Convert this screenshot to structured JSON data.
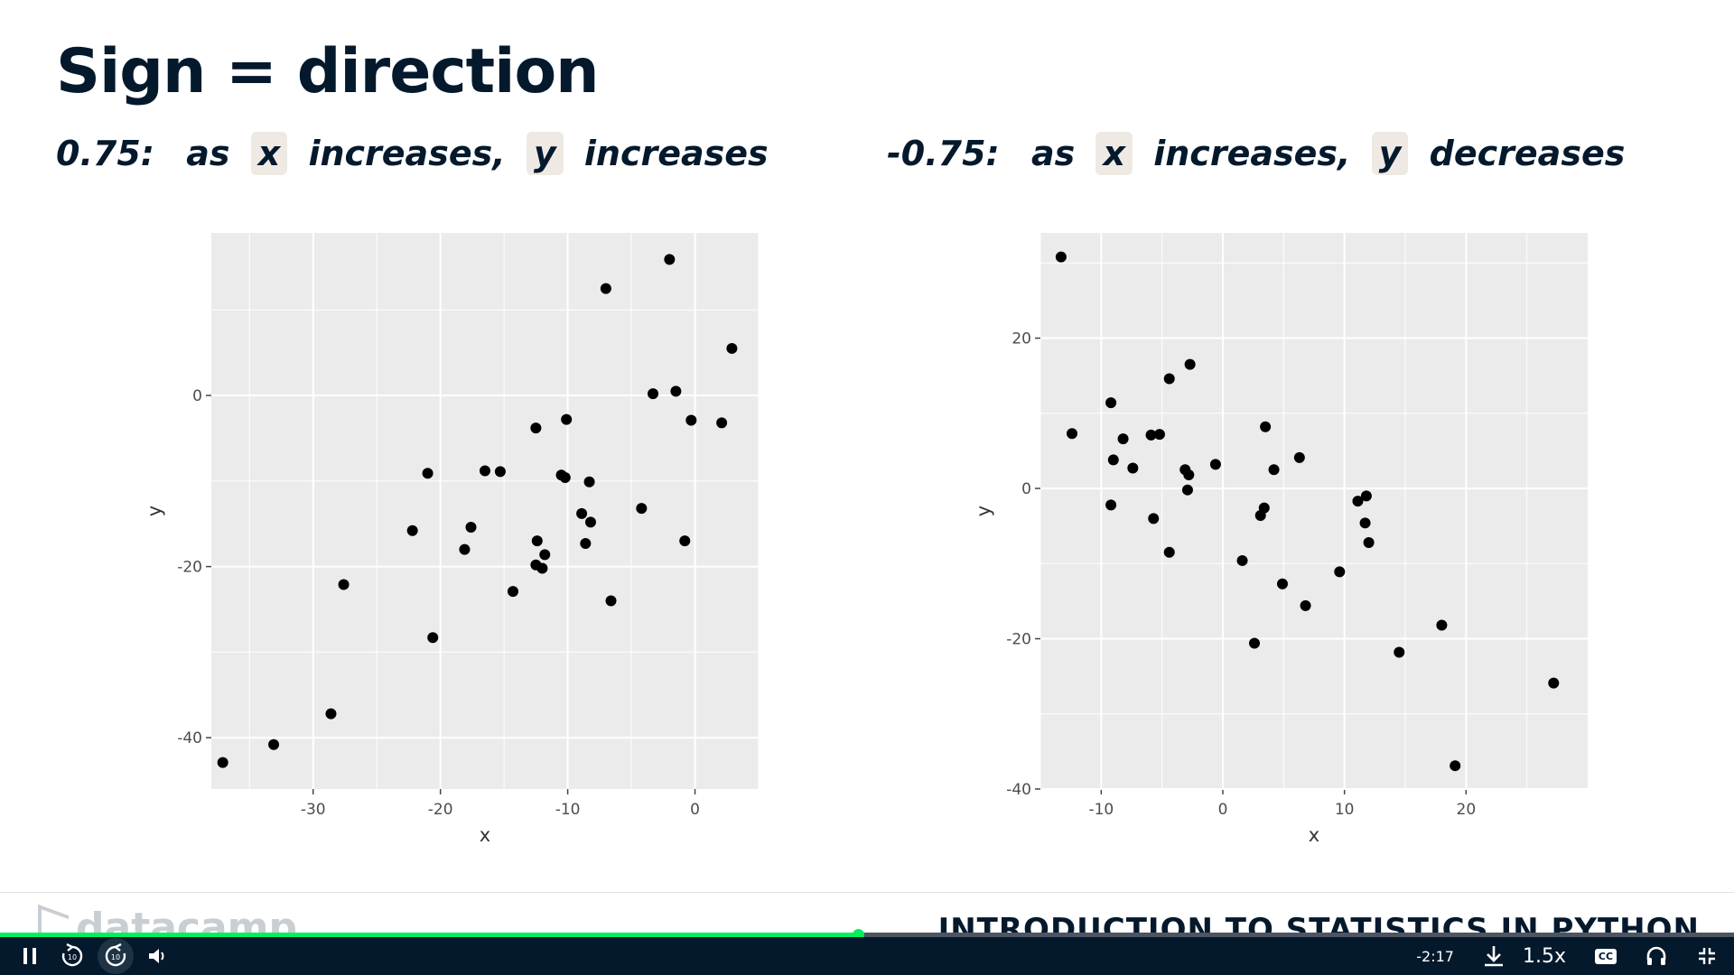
{
  "slide": {
    "title": "Sign = direction",
    "left_caption": {
      "value": "0.75:",
      "as": "as",
      "x": "x",
      "mid": "increases,",
      "y": "y",
      "end": "increases"
    },
    "right_caption": {
      "value": "-0.75:",
      "as": "as",
      "x": "x",
      "mid": "increases,",
      "y": "y",
      "end": "decreases"
    },
    "brand": "datacamp",
    "course": "INTRODUCTION TO STATISTICS IN PYTHON"
  },
  "player": {
    "time_remaining": "-2:17",
    "speed": "1.5x",
    "cc_label": "CC",
    "progress": 0.495,
    "accent_color": "#03ef62",
    "bar_color": "#05192d",
    "icons": [
      "pause-icon",
      "rewind-10-icon",
      "forward-10-icon",
      "volume-icon",
      "download-icon",
      "closed-captions-icon",
      "headphones-icon",
      "exit-fullscreen-icon"
    ]
  },
  "chart_data": [
    {
      "type": "scatter",
      "xlabel": "x",
      "ylabel": "y",
      "xlim": [
        -38,
        5
      ],
      "ylim": [
        -46,
        19
      ],
      "xticks": [
        -30,
        -20,
        -10,
        0
      ],
      "yticks": [
        -40,
        -20,
        0
      ],
      "grid": true,
      "background": "#ebebeb",
      "points": [
        [
          -37.1,
          -42.9
        ],
        [
          -33.1,
          -40.8
        ],
        [
          -28.6,
          -37.2
        ],
        [
          -27.6,
          -22.1
        ],
        [
          -22.2,
          -15.8
        ],
        [
          -21.0,
          -9.1
        ],
        [
          -20.6,
          -28.3
        ],
        [
          -18.1,
          -18.0
        ],
        [
          -17.6,
          -15.4
        ],
        [
          -16.5,
          -8.8
        ],
        [
          -15.3,
          -8.9
        ],
        [
          -14.3,
          -22.9
        ],
        [
          -12.5,
          -3.8
        ],
        [
          -12.5,
          -19.8
        ],
        [
          -12.4,
          -17.0
        ],
        [
          -12.0,
          -20.2
        ],
        [
          -11.8,
          -18.6
        ],
        [
          -10.5,
          -9.3
        ],
        [
          -10.2,
          -9.6
        ],
        [
          -10.1,
          -2.8
        ],
        [
          -8.9,
          -13.8
        ],
        [
          -8.6,
          -17.3
        ],
        [
          -8.3,
          -10.1
        ],
        [
          -8.2,
          -14.8
        ],
        [
          -7.0,
          12.5
        ],
        [
          -6.6,
          -24.0
        ],
        [
          -4.2,
          -13.2
        ],
        [
          -3.3,
          0.2
        ],
        [
          -2.0,
          15.9
        ],
        [
          -1.5,
          0.5
        ],
        [
          -0.8,
          -17.0
        ],
        [
          -0.3,
          -2.9
        ],
        [
          2.1,
          -3.2
        ],
        [
          2.9,
          5.5
        ]
      ]
    },
    {
      "type": "scatter",
      "xlabel": "x",
      "ylabel": "y",
      "xlim": [
        -15,
        30
      ],
      "ylim": [
        -40,
        34
      ],
      "xticks": [
        -10,
        0,
        10,
        20
      ],
      "yticks": [
        -40,
        -20,
        0,
        20
      ],
      "grid": true,
      "background": "#ebebeb",
      "points": [
        [
          -13.3,
          30.8
        ],
        [
          -12.4,
          7.3
        ],
        [
          -9.2,
          11.4
        ],
        [
          -9.2,
          -2.2
        ],
        [
          -9.0,
          3.8
        ],
        [
          -8.2,
          6.6
        ],
        [
          -7.4,
          2.7
        ],
        [
          -5.9,
          7.1
        ],
        [
          -5.7,
          -4.0
        ],
        [
          -5.2,
          7.2
        ],
        [
          -4.4,
          14.6
        ],
        [
          -4.4,
          -8.5
        ],
        [
          -3.1,
          2.5
        ],
        [
          -2.9,
          -0.2
        ],
        [
          -2.8,
          1.8
        ],
        [
          -2.7,
          16.5
        ],
        [
          -0.6,
          3.2
        ],
        [
          1.6,
          -9.6
        ],
        [
          2.6,
          -20.6
        ],
        [
          3.1,
          -3.6
        ],
        [
          3.4,
          -2.6
        ],
        [
          3.5,
          8.2
        ],
        [
          4.2,
          2.5
        ],
        [
          4.9,
          -12.7
        ],
        [
          6.3,
          4.1
        ],
        [
          6.8,
          -15.6
        ],
        [
          9.6,
          -11.1
        ],
        [
          11.1,
          -1.7
        ],
        [
          11.7,
          -4.6
        ],
        [
          11.8,
          -1.0
        ],
        [
          12.0,
          -7.2
        ],
        [
          14.5,
          -21.8
        ],
        [
          18.0,
          -18.2
        ],
        [
          19.1,
          -36.9
        ],
        [
          27.2,
          -25.9
        ]
      ]
    }
  ]
}
